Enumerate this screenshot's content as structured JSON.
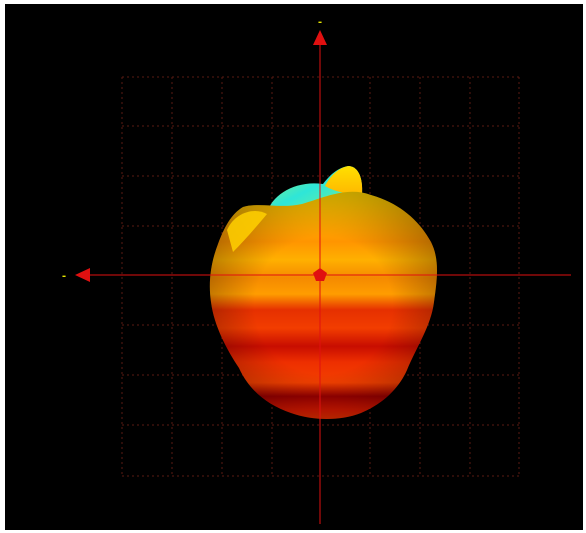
{
  "viewport": {
    "background": "#000000",
    "grid_visible": true,
    "grid_color": "#5a1a12"
  },
  "axes": {
    "color": "#e01010",
    "vertical_marker": "-",
    "horizontal_marker": "-",
    "marker_color": "#e6e600",
    "arrow_up_icon": "triangle-up-icon",
    "arrow_left_icon": "triangle-left-icon",
    "origin_icon": "pentagon-icon"
  },
  "pattern": {
    "colors": [
      "#c00000",
      "#e03000",
      "#f26a00",
      "#ffa400",
      "#ffd400",
      "#5ff08a",
      "#2ee0e0"
    ]
  }
}
